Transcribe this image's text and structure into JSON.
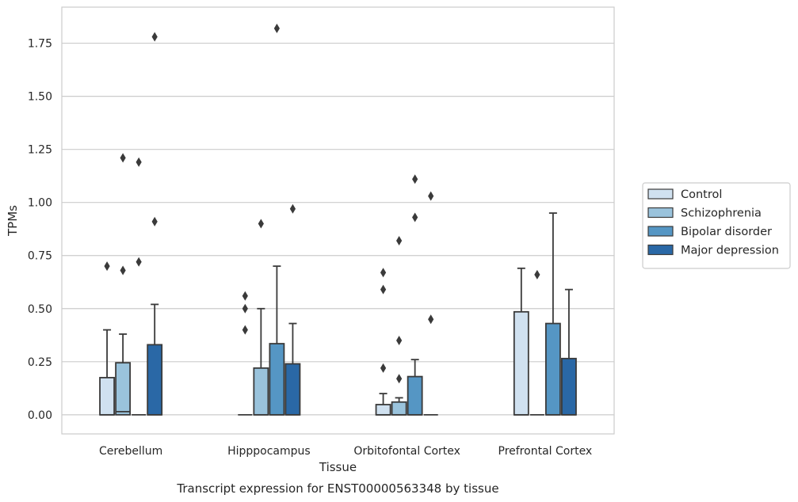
{
  "chart_data": {
    "type": "box",
    "title": "Transcript expression for ENST00000563348 by tissue",
    "xlabel": "Tissue",
    "ylabel": "TPMs",
    "ylim": [
      -0.09,
      1.92
    ],
    "yticks": [
      0.0,
      0.25,
      0.5,
      0.75,
      1.0,
      1.25,
      1.5,
      1.75
    ],
    "ytick_labels": [
      "0.00",
      "0.25",
      "0.50",
      "0.75",
      "1.00",
      "1.25",
      "1.50",
      "1.75"
    ],
    "grid": "horizontal",
    "legend_position": "right",
    "categories": [
      "Cerebellum",
      "Hipppocampus",
      "Orbitofontal Cortex",
      "Prefrontal Cortex"
    ],
    "series": [
      {
        "name": "Control",
        "color": "#d0e1f0",
        "boxes": [
          {
            "q1": 0.0,
            "median": 0.0,
            "q3": 0.175,
            "whisker_low": 0.0,
            "whisker_high": 0.4,
            "outliers": [
              0.7
            ]
          },
          {
            "q1": 0.0,
            "median": 0.0,
            "q3": 0.0,
            "whisker_low": 0.0,
            "whisker_high": 0.0,
            "outliers": [
              0.4,
              0.5,
              0.56
            ]
          },
          {
            "q1": 0.0,
            "median": 0.0,
            "q3": 0.048,
            "whisker_low": 0.0,
            "whisker_high": 0.1,
            "outliers": [
              0.22,
              0.59,
              0.67
            ]
          },
          {
            "q1": 0.0,
            "median": 0.0,
            "q3": 0.485,
            "whisker_low": 0.0,
            "whisker_high": 0.69,
            "outliers": []
          }
        ]
      },
      {
        "name": "Schizophrenia",
        "color": "#9ac3dc",
        "boxes": [
          {
            "q1": 0.0,
            "median": 0.015,
            "q3": 0.245,
            "whisker_low": 0.0,
            "whisker_high": 0.38,
            "outliers": [
              0.68,
              1.21
            ]
          },
          {
            "q1": 0.0,
            "median": 0.0,
            "q3": 0.22,
            "whisker_low": 0.0,
            "whisker_high": 0.5,
            "outliers": [
              0.9
            ]
          },
          {
            "q1": 0.0,
            "median": 0.0,
            "q3": 0.06,
            "whisker_low": 0.0,
            "whisker_high": 0.08,
            "outliers": [
              0.17,
              0.35,
              0.82
            ]
          },
          {
            "q1": 0.0,
            "median": 0.0,
            "q3": 0.0,
            "whisker_low": 0.0,
            "whisker_high": 0.0,
            "outliers": [
              0.66
            ]
          }
        ]
      },
      {
        "name": "Bipolar disorder",
        "color": "#5596c4",
        "boxes": [
          {
            "q1": 0.0,
            "median": 0.0,
            "q3": 0.0,
            "whisker_low": 0.0,
            "whisker_high": 0.0,
            "outliers": [
              0.72,
              1.19
            ]
          },
          {
            "q1": 0.0,
            "median": 0.0,
            "q3": 0.335,
            "whisker_low": 0.0,
            "whisker_high": 0.7,
            "outliers": [
              1.82
            ]
          },
          {
            "q1": 0.0,
            "median": 0.0,
            "q3": 0.18,
            "whisker_low": 0.0,
            "whisker_high": 0.26,
            "outliers": [
              0.93,
              1.11
            ]
          },
          {
            "q1": 0.0,
            "median": 0.0,
            "q3": 0.43,
            "whisker_low": 0.0,
            "whisker_high": 0.95,
            "outliers": []
          }
        ]
      },
      {
        "name": "Major depression",
        "color": "#2a68a6",
        "boxes": [
          {
            "q1": 0.0,
            "median": 0.0,
            "q3": 0.33,
            "whisker_low": 0.0,
            "whisker_high": 0.52,
            "outliers": [
              0.91,
              1.78
            ]
          },
          {
            "q1": 0.0,
            "median": 0.0,
            "q3": 0.24,
            "whisker_low": 0.0,
            "whisker_high": 0.43,
            "outliers": [
              0.97
            ]
          },
          {
            "q1": 0.0,
            "median": 0.0,
            "q3": 0.0,
            "whisker_low": 0.0,
            "whisker_high": 0.0,
            "outliers": [
              0.45,
              1.03
            ]
          },
          {
            "q1": 0.0,
            "median": 0.0,
            "q3": 0.265,
            "whisker_low": 0.0,
            "whisker_high": 0.59,
            "outliers": []
          }
        ]
      }
    ]
  }
}
